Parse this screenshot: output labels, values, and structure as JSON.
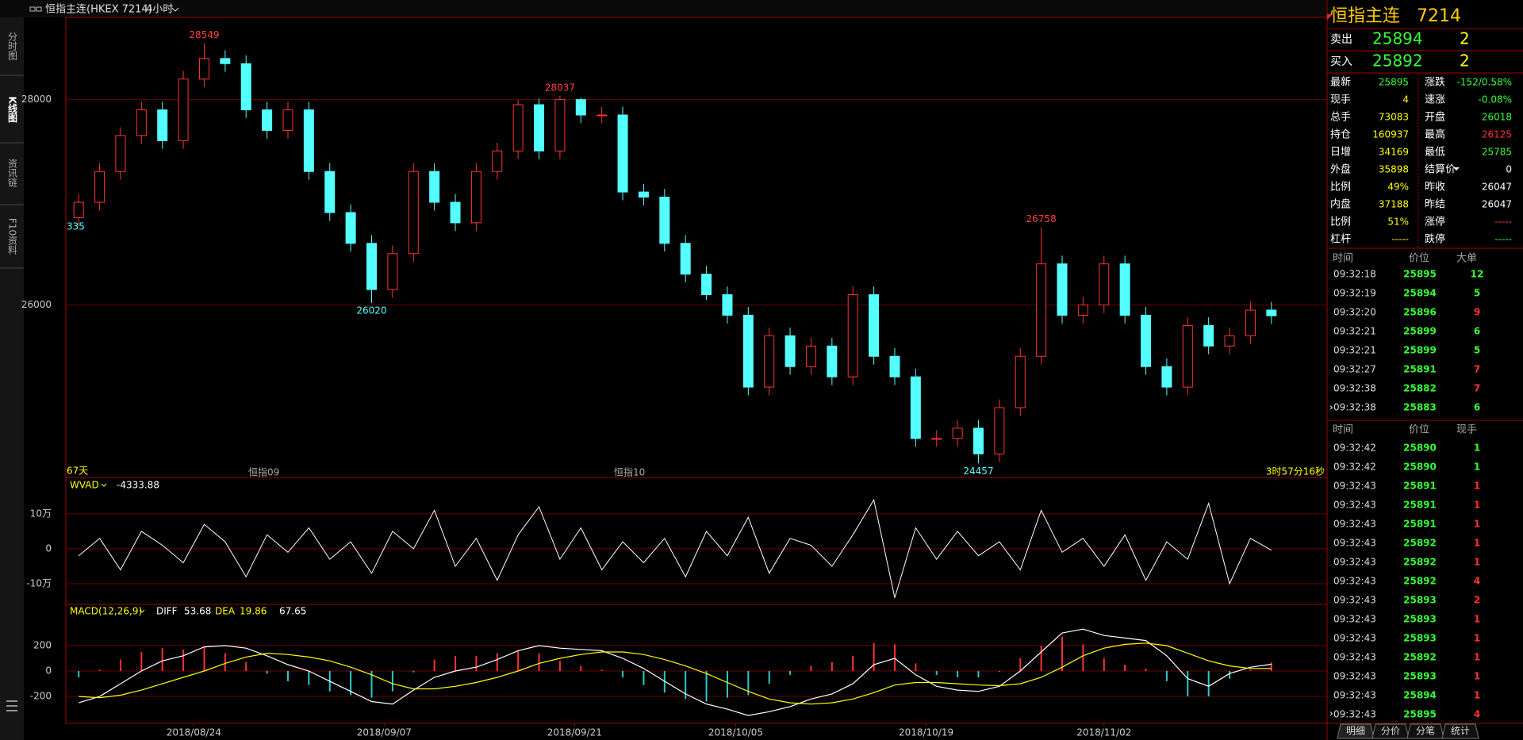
{
  "header": {
    "title": "恒指主连(HKEX 7214)",
    "period": "4小时"
  },
  "sidebar": [
    "分时图",
    "K线图",
    "资讯链",
    "F10资料"
  ],
  "annotations": {
    "left_price": "335",
    "days": "67天",
    "contract_a": "恒指09",
    "contract_b": "恒指10",
    "countdown": "3时57分16秒"
  },
  "chart_data": [
    {
      "type": "candlestick",
      "up_color": "#ff3232",
      "down_color": "#54ffff",
      "open": [
        26850,
        27000,
        27300,
        27650,
        27900,
        27600,
        28200,
        28400,
        28350,
        27900,
        27700,
        27900,
        27300,
        26900,
        26600,
        26150,
        26500,
        27300,
        27000,
        26800,
        27300,
        27500,
        27950,
        27500,
        28000,
        27850,
        27850,
        27100,
        27050,
        26600,
        26300,
        26100,
        25900,
        25200,
        25700,
        25400,
        25600,
        25300,
        26100,
        25500,
        25300,
        24700,
        24700,
        24800,
        24550,
        25000,
        25500,
        26400,
        25900,
        26000,
        26400,
        25900,
        25400,
        25200,
        25800,
        25600,
        25700,
        25950
      ],
      "high": [
        27080,
        27380,
        27730,
        27980,
        27980,
        28280,
        28549,
        28480,
        28430,
        27980,
        27980,
        27980,
        27380,
        26980,
        26680,
        26580,
        27380,
        27380,
        27080,
        27380,
        27580,
        28000,
        28010,
        28037,
        28020,
        27930,
        27930,
        27180,
        27130,
        26680,
        26380,
        26180,
        25980,
        25780,
        25780,
        25680,
        25680,
        26180,
        26180,
        25580,
        25380,
        24780,
        24880,
        24880,
        25080,
        25580,
        26758,
        26480,
        26080,
        26480,
        26480,
        25980,
        25480,
        25880,
        25880,
        25780,
        26030,
        26030
      ],
      "low": [
        26770,
        26920,
        27220,
        27570,
        27520,
        27520,
        28120,
        28270,
        27820,
        27620,
        27620,
        27220,
        26820,
        26520,
        26020,
        26070,
        26420,
        26920,
        26720,
        26720,
        27220,
        27420,
        27420,
        27420,
        27770,
        27770,
        27020,
        26970,
        26520,
        26220,
        26050,
        25820,
        25120,
        25120,
        25320,
        25320,
        25220,
        25220,
        25420,
        25220,
        24620,
        24620,
        24620,
        24457,
        24470,
        24920,
        25420,
        25820,
        25820,
        25920,
        25820,
        25320,
        25120,
        25120,
        25520,
        25520,
        25620,
        25815
      ],
      "close": [
        27000,
        27300,
        27650,
        27900,
        27600,
        28200,
        28400,
        28350,
        27900,
        27700,
        27900,
        27300,
        26900,
        26600,
        26150,
        26500,
        27300,
        27000,
        26800,
        27300,
        27500,
        27950,
        27500,
        28000,
        27850,
        27850,
        27100,
        27050,
        26600,
        26300,
        26100,
        25900,
        25200,
        25700,
        25400,
        25600,
        25300,
        26100,
        25500,
        25300,
        24700,
        24700,
        24800,
        24550,
        25000,
        25500,
        26400,
        25900,
        26000,
        26400,
        25900,
        25400,
        25200,
        25800,
        25600,
        25700,
        25950,
        25895
      ],
      "ylim": [
        24320,
        28800
      ],
      "yticks": [
        26000,
        28000
      ],
      "grid": true
    },
    {
      "type": "line",
      "title": "WVAD",
      "series": [
        {
          "color": "#ffffff",
          "values": [
            -20000,
            30000,
            -60000,
            50000,
            10000,
            -40000,
            70000,
            20000,
            -80000,
            40000,
            -10000,
            60000,
            -30000,
            20000,
            -70000,
            50000,
            0,
            110000,
            -50000,
            30000,
            -90000,
            40000,
            120000,
            -30000,
            60000,
            -60000,
            20000,
            -40000,
            30000,
            -80000,
            50000,
            -20000,
            90000,
            -70000,
            30000,
            10000,
            -50000,
            40000,
            140000,
            -140000,
            60000,
            -30000,
            50000,
            -20000,
            20000,
            -60000,
            110000,
            -10000,
            30000,
            -50000,
            40000,
            -90000,
            20000,
            -30000,
            130000,
            -100000,
            30000,
            -4333.88
          ]
        }
      ],
      "ylim": [
        -159000,
        204000
      ],
      "yticks": [
        {
          "value": -100000,
          "label": "-10万"
        },
        0,
        {
          "value": 100000,
          "label": "10万"
        }
      ],
      "grid": true
    },
    {
      "type": "macd",
      "title": "MACD(12,26,9)",
      "series": [
        {
          "name": "DIFF",
          "color": "#ffffff",
          "values": [
            -250,
            -200,
            -100,
            0,
            80,
            120,
            190,
            200,
            180,
            120,
            50,
            0,
            -80,
            -160,
            -240,
            -260,
            -150,
            -50,
            0,
            30,
            90,
            160,
            200,
            180,
            170,
            160,
            100,
            20,
            -80,
            -180,
            -260,
            -300,
            -350,
            -320,
            -280,
            -220,
            -180,
            -100,
            50,
            100,
            -30,
            -120,
            -150,
            -160,
            -120,
            0,
            150,
            300,
            330,
            280,
            260,
            240,
            120,
            -60,
            -120,
            -20,
            30,
            53.68
          ]
        },
        {
          "name": "DEA",
          "color": "#ffff00",
          "values": [
            -200,
            -210,
            -190,
            -150,
            -100,
            -50,
            0,
            60,
            110,
            140,
            130,
            110,
            80,
            30,
            -30,
            -100,
            -140,
            -140,
            -120,
            -90,
            -50,
            0,
            60,
            100,
            130,
            150,
            150,
            130,
            90,
            40,
            -20,
            -90,
            -160,
            -220,
            -250,
            -260,
            -250,
            -220,
            -170,
            -110,
            -90,
            -90,
            -100,
            -110,
            -115,
            -100,
            -50,
            30,
            120,
            180,
            210,
            220,
            200,
            140,
            80,
            40,
            20,
            19.86
          ]
        },
        {
          "up_color": "#ff3232",
          "down_color": "#2ec8c8",
          "values": [
            -50,
            10,
            90,
            150,
            180,
            170,
            190,
            140,
            70,
            -20,
            -80,
            -110,
            -160,
            -190,
            -210,
            -160,
            -10,
            90,
            120,
            120,
            140,
            160,
            140,
            80,
            40,
            10,
            -50,
            -110,
            -170,
            -220,
            -240,
            -210,
            -190,
            -100,
            -30,
            40,
            70,
            120,
            220,
            210,
            60,
            -30,
            -50,
            -50,
            -5,
            100,
            200,
            270,
            210,
            100,
            50,
            20,
            -80,
            -200,
            -200,
            -60,
            10,
            67.65
          ]
        }
      ],
      "ylim": [
        -412,
        525
      ],
      "yticks": [
        -200,
        0,
        200
      ],
      "grid": true,
      "xticks": [
        {
          "value": 5.5,
          "label": "2018/08/24"
        },
        {
          "value": 14.6,
          "label": "2018/09/07"
        },
        {
          "value": 23.7,
          "label": "2018/09/21"
        },
        {
          "value": 31.4,
          "label": "2018/10/05"
        },
        {
          "value": 40.5,
          "label": "2018/10/19"
        },
        {
          "value": 49,
          "label": "2018/11/02"
        }
      ]
    }
  ],
  "quote": {
    "name": "恒指主连",
    "code": "7214",
    "ask": {
      "label": "卖出",
      "price": "25894",
      "qty": "2"
    },
    "bid": {
      "label": "买入",
      "price": "25892",
      "qty": "2"
    },
    "rows": [
      {
        "cells": [
          "最新",
          "25895",
          "涨跌",
          "-152/0.58%"
        ],
        "colors": [
          "#33ff33",
          "#33ff33"
        ]
      },
      {
        "cells": [
          "现手",
          "4",
          "速涨",
          "-0.08%"
        ],
        "colors": [
          "#ffff00",
          "#33ff33"
        ]
      },
      {
        "cells": [
          "总手",
          "73083",
          "开盘",
          "26018"
        ],
        "colors": [
          "#ffff00",
          "#33ff33"
        ]
      },
      {
        "cells": [
          "持仓",
          "160937",
          "最高",
          "26125"
        ],
        "colors": [
          "#ffff00",
          "#ff3232"
        ]
      },
      {
        "cells": [
          "日增",
          "34169",
          "最低",
          "25785"
        ],
        "colors": [
          "#ffff00",
          "#33ff33"
        ]
      },
      {
        "cells": [
          "外盘",
          "35898",
          "结算价",
          "0"
        ],
        "colors": [
          "#ffff00",
          "#ffffff"
        ]
      },
      {
        "cells": [
          "比例",
          "49%",
          "昨收",
          "26047"
        ],
        "colors": [
          "#ffff00",
          "#ffffff"
        ]
      },
      {
        "cells": [
          "内盘",
          "37188",
          "昨结",
          "26047"
        ],
        "colors": [
          "#ffff00",
          "#ffffff"
        ]
      },
      {
        "cells": [
          "比例",
          "51%",
          "涨停",
          "-----"
        ],
        "colors": [
          "#ffff00",
          "#ff3232"
        ]
      },
      {
        "cells": [
          "杠杆",
          "-----",
          "跌停",
          "-----"
        ],
        "colors": [
          "#ffff00",
          "#33ff33"
        ]
      }
    ]
  },
  "large_orders": {
    "headers": [
      "时间",
      "价位",
      "大单"
    ],
    "rows": [
      {
        "time": "09:32:18",
        "price": "25895",
        "qty": "12",
        "qty_color": "#33ff33"
      },
      {
        "time": "09:32:19",
        "price": "25894",
        "qty": "5",
        "qty_color": "#33ff33"
      },
      {
        "time": "09:32:20",
        "price": "25896",
        "qty": "9",
        "qty_color": "#ff3232"
      },
      {
        "time": "09:32:21",
        "price": "25899",
        "qty": "6",
        "qty_color": "#33ff33"
      },
      {
        "time": "09:32:21",
        "price": "25899",
        "qty": "5",
        "qty_color": "#33ff33"
      },
      {
        "time": "09:32:27",
        "price": "25891",
        "qty": "7",
        "qty_color": "#ff3232"
      },
      {
        "time": "09:32:38",
        "price": "25882",
        "qty": "7",
        "qty_color": "#ff3232"
      },
      {
        "time": "09:32:38",
        "price": "25883",
        "qty": "6",
        "qty_color": "#33ff33"
      }
    ]
  },
  "trades": {
    "headers": [
      "时间",
      "价位",
      "现手"
    ],
    "rows": [
      {
        "time": "09:32:42",
        "price": "25890",
        "qty": "1",
        "qty_color": "#33ff33"
      },
      {
        "time": "09:32:42",
        "price": "25890",
        "qty": "1",
        "qty_color": "#33ff33"
      },
      {
        "time": "09:32:43",
        "price": "25891",
        "qty": "1",
        "qty_color": "#ff3232"
      },
      {
        "time": "09:32:43",
        "price": "25891",
        "qty": "1",
        "qty_color": "#ff3232"
      },
      {
        "time": "09:32:43",
        "price": "25891",
        "qty": "1",
        "qty_color": "#ff3232"
      },
      {
        "time": "09:32:43",
        "price": "25892",
        "qty": "1",
        "qty_color": "#ff3232"
      },
      {
        "time": "09:32:43",
        "price": "25892",
        "qty": "1",
        "qty_color": "#ff3232"
      },
      {
        "time": "09:32:43",
        "price": "25892",
        "qty": "4",
        "qty_color": "#ff3232"
      },
      {
        "time": "09:32:43",
        "price": "25893",
        "qty": "2",
        "qty_color": "#ff3232"
      },
      {
        "time": "09:32:43",
        "price": "25893",
        "qty": "1",
        "qty_color": "#ff3232"
      },
      {
        "time": "09:32:43",
        "price": "25893",
        "qty": "1",
        "qty_color": "#ff3232"
      },
      {
        "time": "09:32:43",
        "price": "25892",
        "qty": "1",
        "qty_color": "#ff3232"
      },
      {
        "time": "09:32:43",
        "price": "25893",
        "qty": "1",
        "qty_color": "#ff3232"
      },
      {
        "time": "09:32:43",
        "price": "25894",
        "qty": "1",
        "qty_color": "#ff3232"
      },
      {
        "time": "09:32:43",
        "price": "25895",
        "qty": "4",
        "qty_color": "#ff3232"
      }
    ]
  },
  "tabs": [
    "明细",
    "分价",
    "分笔",
    "统计"
  ]
}
